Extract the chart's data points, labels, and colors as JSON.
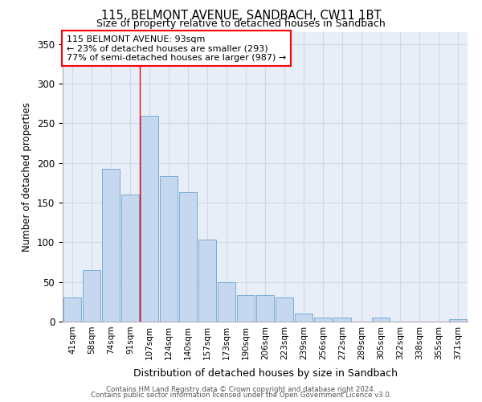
{
  "title1": "115, BELMONT AVENUE, SANDBACH, CW11 1BT",
  "title2": "Size of property relative to detached houses in Sandbach",
  "xlabel": "Distribution of detached houses by size in Sandbach",
  "ylabel": "Number of detached properties",
  "categories": [
    "41sqm",
    "58sqm",
    "74sqm",
    "91sqm",
    "107sqm",
    "124sqm",
    "140sqm",
    "157sqm",
    "173sqm",
    "190sqm",
    "206sqm",
    "223sqm",
    "239sqm",
    "256sqm",
    "272sqm",
    "289sqm",
    "305sqm",
    "322sqm",
    "338sqm",
    "355sqm",
    "371sqm"
  ],
  "values": [
    30,
    65,
    193,
    160,
    260,
    184,
    163,
    103,
    50,
    33,
    33,
    30,
    10,
    5,
    5,
    0,
    5,
    0,
    0,
    0,
    3
  ],
  "bar_color": "#c5d8f0",
  "bar_edge_color": "#7aadd4",
  "vline_x": 3.5,
  "vline_color": "red",
  "annotation_line1": "115 BELMONT AVENUE: 93sqm",
  "annotation_line2": "← 23% of detached houses are smaller (293)",
  "annotation_line3": "77% of semi-detached houses are larger (987) →",
  "annotation_box_color": "white",
  "annotation_box_edge": "red",
  "ylim": [
    0,
    365
  ],
  "yticks": [
    0,
    50,
    100,
    150,
    200,
    250,
    300,
    350
  ],
  "grid_color": "#d0d8e8",
  "bg_color": "#e8eef8",
  "footer1": "Contains HM Land Registry data © Crown copyright and database right 2024.",
  "footer2": "Contains public sector information licensed under the Open Government Licence v3.0."
}
